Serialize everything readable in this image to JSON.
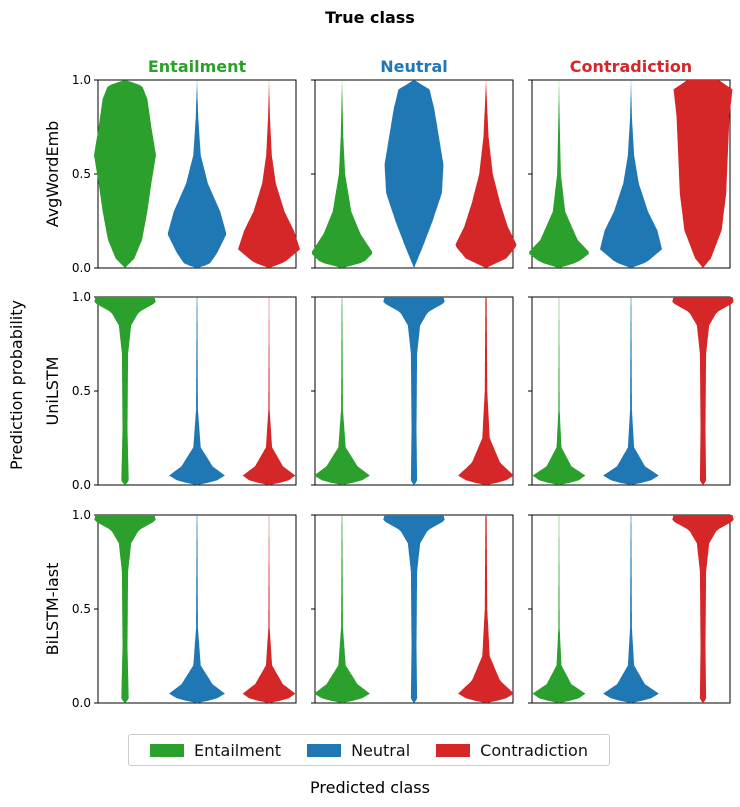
{
  "chart_data": {
    "type": "violin",
    "title": "True class",
    "xlabel": "Predicted class",
    "ylabel": "Prediction probability",
    "ylim": [
      0,
      1
    ],
    "yticks": [
      "0.0",
      "0.5",
      "1.0"
    ],
    "columns": [
      {
        "label": "Entailment",
        "color": "#2ca02c"
      },
      {
        "label": "Neutral",
        "color": "#1f77b4"
      },
      {
        "label": "Contradiction",
        "color": "#d62728"
      }
    ],
    "rows": [
      "AvgWordEmb",
      "UniLSTM",
      "BiLSTM-last"
    ],
    "legend": [
      {
        "label": "Entailment",
        "color": "#2ca02c"
      },
      {
        "label": "Neutral",
        "color": "#1f77b4"
      },
      {
        "label": "Contradiction",
        "color": "#d62728"
      }
    ],
    "violins": [
      [
        [
          [
            [
              0,
              0
            ],
            [
              0.05,
              0.3
            ],
            [
              0.15,
              0.55
            ],
            [
              0.3,
              0.72
            ],
            [
              0.45,
              0.85
            ],
            [
              0.6,
              1.0
            ],
            [
              0.75,
              0.85
            ],
            [
              0.9,
              0.72
            ],
            [
              0.97,
              0.55
            ],
            [
              1,
              0
            ]
          ],
          [
            [
              0,
              0
            ],
            [
              0.02,
              0.4
            ],
            [
              0.08,
              0.65
            ],
            [
              0.18,
              0.95
            ],
            [
              0.3,
              0.75
            ],
            [
              0.45,
              0.35
            ],
            [
              0.6,
              0.12
            ],
            [
              0.8,
              0.04
            ],
            [
              1,
              0
            ]
          ],
          [
            [
              0,
              0
            ],
            [
              0.03,
              0.5
            ],
            [
              0.1,
              1.0
            ],
            [
              0.2,
              0.8
            ],
            [
              0.3,
              0.5
            ],
            [
              0.45,
              0.22
            ],
            [
              0.6,
              0.09
            ],
            [
              0.8,
              0.03
            ],
            [
              1,
              0
            ]
          ]
        ],
        [
          [
            [
              0,
              0
            ],
            [
              0.03,
              0.7
            ],
            [
              0.08,
              1.0
            ],
            [
              0.18,
              0.6
            ],
            [
              0.3,
              0.3
            ],
            [
              0.5,
              0.1
            ],
            [
              0.7,
              0.04
            ],
            [
              1,
              0
            ]
          ],
          [
            [
              0,
              0
            ],
            [
              0.1,
              0.25
            ],
            [
              0.25,
              0.6
            ],
            [
              0.4,
              0.9
            ],
            [
              0.55,
              0.95
            ],
            [
              0.7,
              0.8
            ],
            [
              0.85,
              0.65
            ],
            [
              0.95,
              0.5
            ],
            [
              1,
              0
            ]
          ],
          [
            [
              0,
              0
            ],
            [
              0.05,
              0.65
            ],
            [
              0.12,
              1.0
            ],
            [
              0.22,
              0.7
            ],
            [
              0.35,
              0.45
            ],
            [
              0.5,
              0.22
            ],
            [
              0.7,
              0.08
            ],
            [
              1,
              0
            ]
          ]
        ],
        [
          [
            [
              0,
              0
            ],
            [
              0.03,
              0.6
            ],
            [
              0.08,
              1.0
            ],
            [
              0.15,
              0.6
            ],
            [
              0.3,
              0.2
            ],
            [
              0.5,
              0.06
            ],
            [
              0.8,
              0.02
            ],
            [
              1,
              0
            ]
          ],
          [
            [
              0,
              0
            ],
            [
              0.03,
              0.5
            ],
            [
              0.1,
              1.0
            ],
            [
              0.2,
              0.85
            ],
            [
              0.3,
              0.55
            ],
            [
              0.45,
              0.25
            ],
            [
              0.6,
              0.1
            ],
            [
              0.8,
              0.03
            ],
            [
              1,
              0
            ]
          ],
          [
            [
              0,
              0
            ],
            [
              0.05,
              0.25
            ],
            [
              0.2,
              0.6
            ],
            [
              0.4,
              0.75
            ],
            [
              0.6,
              0.8
            ],
            [
              0.8,
              0.85
            ],
            [
              0.95,
              0.95
            ],
            [
              1,
              0.5
            ]
          ]
        ]
      ],
      [
        [
          [
            [
              0,
              0
            ],
            [
              0.02,
              0.12
            ],
            [
              0.3,
              0.08
            ],
            [
              0.7,
              0.1
            ],
            [
              0.85,
              0.2
            ],
            [
              0.92,
              0.45
            ],
            [
              0.97,
              1.0
            ],
            [
              1,
              0.95
            ]
          ],
          [
            [
              0,
              0
            ],
            [
              0.02,
              0.6
            ],
            [
              0.05,
              0.9
            ],
            [
              0.1,
              0.5
            ],
            [
              0.2,
              0.12
            ],
            [
              0.4,
              0.03
            ],
            [
              1,
              0.01
            ]
          ],
          [
            [
              0,
              0
            ],
            [
              0.02,
              0.6
            ],
            [
              0.05,
              0.85
            ],
            [
              0.1,
              0.45
            ],
            [
              0.2,
              0.1
            ],
            [
              0.4,
              0.02
            ],
            [
              1,
              0.005
            ]
          ]
        ],
        [
          [
            [
              0,
              0
            ],
            [
              0.02,
              0.6
            ],
            [
              0.05,
              0.9
            ],
            [
              0.1,
              0.5
            ],
            [
              0.2,
              0.12
            ],
            [
              0.4,
              0.03
            ],
            [
              1,
              0.01
            ]
          ],
          [
            [
              0,
              0
            ],
            [
              0.02,
              0.1
            ],
            [
              0.3,
              0.08
            ],
            [
              0.7,
              0.1
            ],
            [
              0.85,
              0.2
            ],
            [
              0.92,
              0.45
            ],
            [
              0.97,
              1.0
            ],
            [
              1,
              0.95
            ]
          ],
          [
            [
              0,
              0
            ],
            [
              0.02,
              0.6
            ],
            [
              0.05,
              0.9
            ],
            [
              0.12,
              0.45
            ],
            [
              0.25,
              0.12
            ],
            [
              0.5,
              0.04
            ],
            [
              1,
              0.02
            ]
          ]
        ],
        [
          [
            [
              0,
              0
            ],
            [
              0.02,
              0.6
            ],
            [
              0.05,
              0.85
            ],
            [
              0.1,
              0.4
            ],
            [
              0.2,
              0.08
            ],
            [
              0.4,
              0.02
            ],
            [
              1,
              0.005
            ]
          ],
          [
            [
              0,
              0
            ],
            [
              0.02,
              0.6
            ],
            [
              0.05,
              0.9
            ],
            [
              0.1,
              0.45
            ],
            [
              0.2,
              0.1
            ],
            [
              0.4,
              0.03
            ],
            [
              1,
              0.01
            ]
          ],
          [
            [
              0,
              0
            ],
            [
              0.02,
              0.1
            ],
            [
              0.3,
              0.08
            ],
            [
              0.7,
              0.1
            ],
            [
              0.85,
              0.2
            ],
            [
              0.92,
              0.45
            ],
            [
              0.97,
              1.0
            ],
            [
              1,
              0.95
            ]
          ]
        ]
      ],
      [
        [
          [
            [
              0,
              0
            ],
            [
              0.02,
              0.12
            ],
            [
              0.3,
              0.08
            ],
            [
              0.7,
              0.1
            ],
            [
              0.85,
              0.2
            ],
            [
              0.92,
              0.45
            ],
            [
              0.97,
              1.0
            ],
            [
              1,
              0.95
            ]
          ],
          [
            [
              0,
              0
            ],
            [
              0.02,
              0.6
            ],
            [
              0.05,
              0.9
            ],
            [
              0.1,
              0.5
            ],
            [
              0.2,
              0.12
            ],
            [
              0.4,
              0.03
            ],
            [
              1,
              0.01
            ]
          ],
          [
            [
              0,
              0
            ],
            [
              0.02,
              0.6
            ],
            [
              0.05,
              0.85
            ],
            [
              0.1,
              0.45
            ],
            [
              0.2,
              0.1
            ],
            [
              0.4,
              0.02
            ],
            [
              1,
              0.005
            ]
          ]
        ],
        [
          [
            [
              0,
              0
            ],
            [
              0.02,
              0.6
            ],
            [
              0.05,
              0.9
            ],
            [
              0.1,
              0.5
            ],
            [
              0.2,
              0.12
            ],
            [
              0.4,
              0.03
            ],
            [
              1,
              0.01
            ]
          ],
          [
            [
              0,
              0
            ],
            [
              0.02,
              0.1
            ],
            [
              0.3,
              0.08
            ],
            [
              0.7,
              0.1
            ],
            [
              0.85,
              0.2
            ],
            [
              0.92,
              0.45
            ],
            [
              0.97,
              1.0
            ],
            [
              1,
              0.95
            ]
          ],
          [
            [
              0,
              0
            ],
            [
              0.02,
              0.6
            ],
            [
              0.05,
              0.9
            ],
            [
              0.12,
              0.45
            ],
            [
              0.25,
              0.12
            ],
            [
              0.5,
              0.04
            ],
            [
              1,
              0.02
            ]
          ]
        ],
        [
          [
            [
              0,
              0
            ],
            [
              0.02,
              0.6
            ],
            [
              0.05,
              0.85
            ],
            [
              0.1,
              0.4
            ],
            [
              0.2,
              0.08
            ],
            [
              0.4,
              0.02
            ],
            [
              1,
              0.005
            ]
          ],
          [
            [
              0,
              0
            ],
            [
              0.02,
              0.6
            ],
            [
              0.05,
              0.9
            ],
            [
              0.1,
              0.45
            ],
            [
              0.2,
              0.1
            ],
            [
              0.4,
              0.03
            ],
            [
              1,
              0.01
            ]
          ],
          [
            [
              0,
              0
            ],
            [
              0.02,
              0.1
            ],
            [
              0.3,
              0.08
            ],
            [
              0.7,
              0.1
            ],
            [
              0.85,
              0.2
            ],
            [
              0.92,
              0.45
            ],
            [
              0.97,
              1.0
            ],
            [
              1,
              0.95
            ]
          ]
        ]
      ]
    ]
  }
}
